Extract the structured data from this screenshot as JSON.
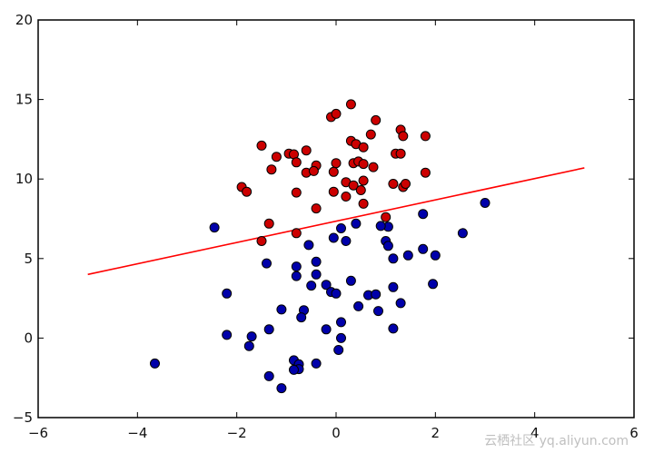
{
  "watermark": "云栖社区 yq.aliyun.com",
  "chart_data": {
    "type": "scatter",
    "title": "",
    "xlabel": "",
    "ylabel": "",
    "xlim": [
      -6,
      6
    ],
    "ylim": [
      -5,
      20
    ],
    "xticks": [
      -6,
      -4,
      -2,
      0,
      2,
      4,
      6
    ],
    "yticks": [
      -5,
      0,
      5,
      10,
      15,
      20
    ],
    "xtick_labels": [
      "−6",
      "−4",
      "−2",
      "0",
      "2",
      "4",
      "6"
    ],
    "ytick_labels": [
      "−5",
      "0",
      "5",
      "10",
      "15",
      "20"
    ],
    "grid": false,
    "series": [
      {
        "color": "#cc0000",
        "points": [
          [
            0.3,
            14.7
          ],
          [
            -0.1,
            13.9
          ],
          [
            0.0,
            14.1
          ],
          [
            0.8,
            13.7
          ],
          [
            1.3,
            13.1
          ],
          [
            1.35,
            12.7
          ],
          [
            1.8,
            12.7
          ],
          [
            -1.5,
            12.1
          ],
          [
            0.3,
            12.4
          ],
          [
            0.4,
            12.2
          ],
          [
            0.55,
            12.0
          ],
          [
            0.7,
            12.8
          ],
          [
            -0.6,
            11.8
          ],
          [
            -0.95,
            11.6
          ],
          [
            -0.85,
            11.55
          ],
          [
            -1.2,
            11.4
          ],
          [
            1.2,
            11.6
          ],
          [
            1.3,
            11.6
          ],
          [
            -0.8,
            11.05
          ],
          [
            0.0,
            11.0
          ],
          [
            0.35,
            11.0
          ],
          [
            0.45,
            11.1
          ],
          [
            0.55,
            10.95
          ],
          [
            -0.4,
            10.85
          ],
          [
            -1.3,
            10.6
          ],
          [
            -0.6,
            10.4
          ],
          [
            -0.45,
            10.5
          ],
          [
            -0.05,
            10.45
          ],
          [
            0.75,
            10.75
          ],
          [
            1.8,
            10.4
          ],
          [
            0.2,
            9.8
          ],
          [
            0.35,
            9.6
          ],
          [
            0.55,
            9.9
          ],
          [
            0.5,
            9.3
          ],
          [
            -1.9,
            9.5
          ],
          [
            -1.8,
            9.2
          ],
          [
            -0.8,
            9.15
          ],
          [
            -0.05,
            9.2
          ],
          [
            0.2,
            8.9
          ],
          [
            1.15,
            9.7
          ],
          [
            1.35,
            9.5
          ],
          [
            1.4,
            9.7
          ],
          [
            -0.4,
            8.15
          ],
          [
            0.55,
            8.45
          ],
          [
            1.0,
            7.6
          ],
          [
            -1.35,
            7.2
          ],
          [
            -0.8,
            6.6
          ],
          [
            -1.5,
            6.1
          ]
        ]
      },
      {
        "color": "#0000aa",
        "points": [
          [
            3.0,
            8.5
          ],
          [
            1.75,
            7.8
          ],
          [
            1.05,
            7.0
          ],
          [
            0.9,
            7.05
          ],
          [
            -2.45,
            6.95
          ],
          [
            0.1,
            6.9
          ],
          [
            0.4,
            7.2
          ],
          [
            2.55,
            6.6
          ],
          [
            -0.05,
            6.3
          ],
          [
            0.2,
            6.1
          ],
          [
            1.0,
            6.1
          ],
          [
            1.05,
            5.8
          ],
          [
            -0.55,
            5.85
          ],
          [
            1.75,
            5.6
          ],
          [
            1.45,
            5.2
          ],
          [
            2.0,
            5.2
          ],
          [
            1.15,
            5.0
          ],
          [
            -1.4,
            4.7
          ],
          [
            -0.4,
            4.8
          ],
          [
            -0.8,
            4.5
          ],
          [
            -0.8,
            3.9
          ],
          [
            -0.4,
            4.0
          ],
          [
            0.3,
            3.6
          ],
          [
            1.95,
            3.4
          ],
          [
            -0.5,
            3.3
          ],
          [
            -0.2,
            3.35
          ],
          [
            1.15,
            3.2
          ],
          [
            -0.1,
            2.9
          ],
          [
            0.0,
            2.8
          ],
          [
            -2.2,
            2.8
          ],
          [
            0.65,
            2.7
          ],
          [
            0.8,
            2.75
          ],
          [
            1.3,
            2.2
          ],
          [
            0.45,
            2.0
          ],
          [
            -1.1,
            1.8
          ],
          [
            -0.65,
            1.75
          ],
          [
            0.85,
            1.7
          ],
          [
            -0.7,
            1.3
          ],
          [
            0.1,
            1.0
          ],
          [
            1.15,
            0.6
          ],
          [
            -1.35,
            0.55
          ],
          [
            -0.2,
            0.55
          ],
          [
            0.1,
            0.0
          ],
          [
            -2.2,
            0.2
          ],
          [
            -1.7,
            0.1
          ],
          [
            -1.75,
            -0.5
          ],
          [
            0.05,
            -0.75
          ],
          [
            -3.65,
            -1.6
          ],
          [
            -0.85,
            -1.4
          ],
          [
            -0.75,
            -1.65
          ],
          [
            -0.4,
            -1.6
          ],
          [
            -0.75,
            -1.95
          ],
          [
            -0.85,
            -2.0
          ],
          [
            -1.35,
            -2.4
          ],
          [
            -1.1,
            -3.15
          ]
        ]
      },
      {
        "type": "line",
        "color": "#ff0000",
        "x": [
          -5,
          5
        ],
        "y": [
          4.0,
          10.7
        ]
      }
    ]
  }
}
